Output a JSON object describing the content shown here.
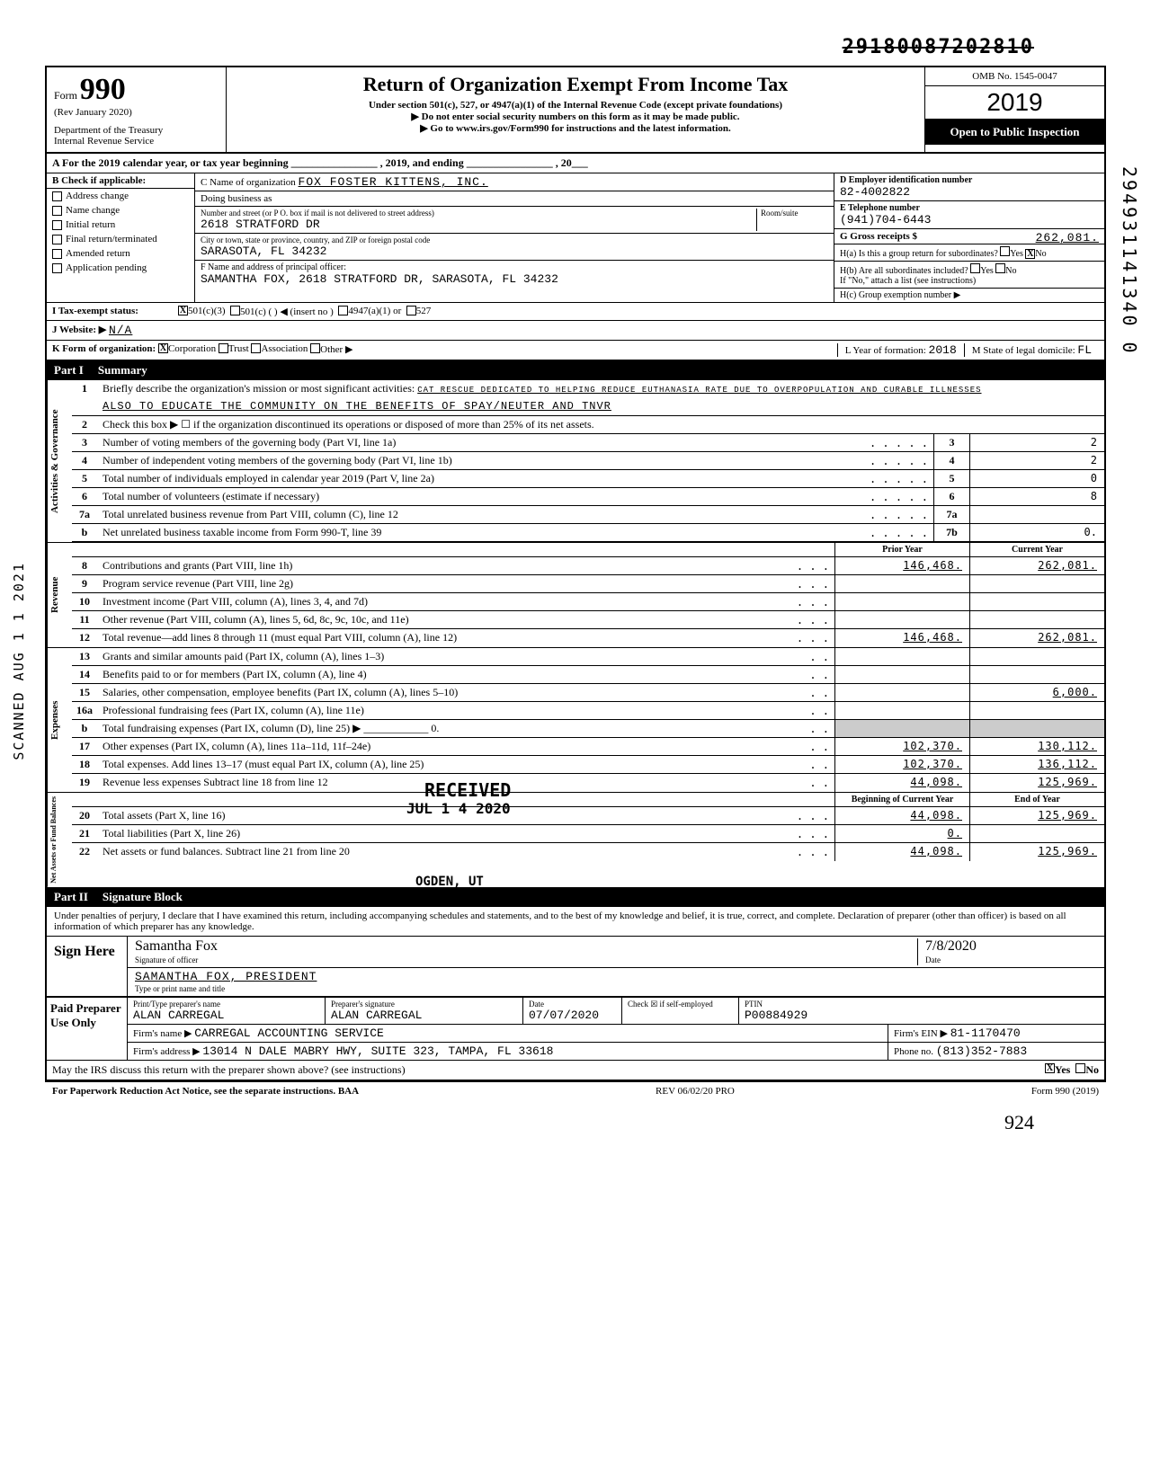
{
  "stamp_top": "29180087202810",
  "side_scanned": "SCANNED AUG 1 1 2021",
  "side_number": "294931141340 0",
  "form": {
    "number_prefix": "Form",
    "number": "990",
    "rev": "(Rev January 2020)",
    "dept": "Department of the Treasury",
    "irs": "Internal Revenue Service",
    "title": "Return of Organization Exempt From Income Tax",
    "subtitle": "Under section 501(c), 527, or 4947(a)(1) of the Internal Revenue Code (except private foundations)",
    "note1": "▶ Do not enter social security numbers on this form as it may be made public.",
    "note2": "▶ Go to www.irs.gov/Form990 for instructions and the latest information.",
    "omb": "OMB No. 1545-0047",
    "year": "2019",
    "open": "Open to Public Inspection"
  },
  "rowA": "A  For the 2019 calendar year, or tax year beginning ________________ , 2019, and ending ________________ , 20___",
  "boxB": {
    "header": "B  Check if applicable:",
    "items": [
      "Address change",
      "Name change",
      "Initial return",
      "Final return/terminated",
      "Amended return",
      "Application pending"
    ]
  },
  "boxC": {
    "label_name": "C Name of organization",
    "name": "FOX FOSTER KITTENS, INC.",
    "dba": "Doing business as",
    "addr_label": "Number and street (or P O. box if mail is not delivered to street address)",
    "room_label": "Room/suite",
    "addr": "2618 STRATFORD DR",
    "city_label": "City or town, state or province, country, and ZIP or foreign postal code",
    "city": "SARASOTA, FL 34232",
    "f_label": "F Name and address of principal officer:",
    "f_val": "SAMANTHA FOX, 2618 STRATFORD DR, SARASOTA, FL 34232"
  },
  "boxD": {
    "label": "D Employer identification number",
    "val": "82-4002822"
  },
  "boxE": {
    "label": "E Telephone number",
    "val": "(941)704-6443"
  },
  "boxG": {
    "label": "G Gross receipts $",
    "val": "262,081."
  },
  "boxH": {
    "a": "H(a) Is this a group return for subordinates?",
    "a_yes": "Yes",
    "a_no": "No",
    "b": "H(b) Are all subordinates included?",
    "b_yes": "Yes",
    "b_no": "No",
    "b_note": "If \"No,\" attach a list (see instructions)",
    "c": "H(c) Group exemption number ▶"
  },
  "rowI": {
    "label": "I   Tax-exempt status:",
    "opts": [
      "501(c)(3)",
      "501(c) (       ) ◀ (insert no )",
      "4947(a)(1) or",
      "527"
    ]
  },
  "rowJ": {
    "label": "J   Website: ▶",
    "val": "N/A"
  },
  "rowK": {
    "label": "K  Form of organization:",
    "opts": [
      "Corporation",
      "Trust",
      "Association",
      "Other ▶"
    ],
    "l_label": "L Year of formation:",
    "l_val": "2018",
    "m_label": "M State of legal domicile:",
    "m_val": "FL"
  },
  "part1": {
    "label": "Part I",
    "title": "Summary"
  },
  "s1": {
    "n": "1",
    "desc": "Briefly describe the organization's mission or most significant activities:",
    "text1": "CAT RESCUE DEDICATED TO HELPING REDUCE EUTHANASIA RATE DUE TO OVERPOPULATION AND CURABLE ILLNESSES",
    "text2": "ALSO TO EDUCATE THE COMMUNITY ON THE BENEFITS OF SPAY/NEUTER AND TNVR"
  },
  "s2": {
    "n": "2",
    "desc": "Check this box ▶ ☐ if the organization discontinued its operations or disposed of more than 25% of its net assets."
  },
  "lines_gov": [
    {
      "n": "3",
      "desc": "Number of voting members of the governing body (Part VI, line 1a)",
      "col": "3",
      "val": "2"
    },
    {
      "n": "4",
      "desc": "Number of independent voting members of the governing body (Part VI, line 1b)",
      "col": "4",
      "val": "2"
    },
    {
      "n": "5",
      "desc": "Total number of individuals employed in calendar year 2019 (Part V, line 2a)",
      "col": "5",
      "val": "0"
    },
    {
      "n": "6",
      "desc": "Total number of volunteers (estimate if necessary)",
      "col": "6",
      "val": "8"
    },
    {
      "n": "7a",
      "desc": "Total unrelated business revenue from Part VIII, column (C), line 12",
      "col": "7a",
      "val": ""
    },
    {
      "n": "b",
      "desc": "Net unrelated business taxable income from Form 990-T, line 39",
      "col": "7b",
      "val": "0."
    }
  ],
  "col_headers": {
    "prior": "Prior Year",
    "current": "Current Year"
  },
  "lines_rev": [
    {
      "n": "8",
      "desc": "Contributions and grants (Part VIII, line 1h)",
      "prior": "146,468.",
      "curr": "262,081."
    },
    {
      "n": "9",
      "desc": "Program service revenue (Part VIII, line 2g)",
      "prior": "",
      "curr": ""
    },
    {
      "n": "10",
      "desc": "Investment income (Part VIII, column (A), lines 3, 4, and 7d)",
      "prior": "",
      "curr": ""
    },
    {
      "n": "11",
      "desc": "Other revenue (Part VIII, column (A), lines 5, 6d, 8c, 9c, 10c, and 11e)",
      "prior": "",
      "curr": ""
    },
    {
      "n": "12",
      "desc": "Total revenue—add lines 8 through 11 (must equal Part VIII, column (A), line 12)",
      "prior": "146,468.",
      "curr": "262,081."
    }
  ],
  "lines_exp": [
    {
      "n": "13",
      "desc": "Grants and similar amounts paid (Part IX, column (A), lines 1–3)",
      "prior": "",
      "curr": ""
    },
    {
      "n": "14",
      "desc": "Benefits paid to or for members (Part IX, column (A), line 4)",
      "prior": "",
      "curr": ""
    },
    {
      "n": "15",
      "desc": "Salaries, other compensation, employee benefits (Part IX, column (A), lines 5–10)",
      "prior": "",
      "curr": "6,000."
    },
    {
      "n": "16a",
      "desc": "Professional fundraising fees (Part IX, column (A), line 11e)",
      "prior": "",
      "curr": ""
    },
    {
      "n": "b",
      "desc": "Total fundraising expenses (Part IX, column (D), line 25) ▶ ____________ 0.",
      "prior": "",
      "curr": "",
      "shaded": true
    },
    {
      "n": "17",
      "desc": "Other expenses (Part IX, column (A), lines 11a–11d, 11f–24e)",
      "prior": "102,370.",
      "curr": "130,112."
    },
    {
      "n": "18",
      "desc": "Total expenses. Add lines 13–17 (must equal Part IX, column (A), line 25)",
      "prior": "102,370.",
      "curr": "136,112."
    },
    {
      "n": "19",
      "desc": "Revenue less expenses Subtract line 18 from line 12",
      "prior": "44,098.",
      "curr": "125,969."
    }
  ],
  "col_headers2": {
    "begin": "Beginning of Current Year",
    "end": "End of Year"
  },
  "lines_net": [
    {
      "n": "20",
      "desc": "Total assets (Part X, line 16)",
      "prior": "44,098.",
      "curr": "125,969."
    },
    {
      "n": "21",
      "desc": "Total liabilities (Part X, line 26)",
      "prior": "0.",
      "curr": ""
    },
    {
      "n": "22",
      "desc": "Net assets or fund balances. Subtract line 21 from line 20",
      "prior": "44,098.",
      "curr": "125,969."
    }
  ],
  "part2": {
    "label": "Part II",
    "title": "Signature Block"
  },
  "sig": {
    "decl": "Under penalties of perjury, I declare that I have examined this return, including accompanying schedules and statements, and to the best of my knowledge and belief, it is true, correct, and complete. Declaration of preparer (other than officer) is based on all information of which preparer has any knowledge.",
    "here": "Sign Here",
    "sig_of": "Signature of officer",
    "date_lbl": "Date",
    "date_val": "7/8/2020",
    "signed_handwrite": "Samantha Fox",
    "name": "SAMANTHA FOX, PRESIDENT",
    "name_lbl": "Type or print name and title"
  },
  "prep": {
    "label": "Paid Preparer Use Only",
    "h1": "Print/Type preparer's name",
    "h2": "Preparer's signature",
    "h3": "Date",
    "h4": "Check ☒ if self-employed",
    "h5": "PTIN",
    "name": "ALAN CARREGAL",
    "sig": "ALAN CARREGAL",
    "date": "07/07/2020",
    "ptin": "P00884929",
    "firm_lbl": "Firm's name ▶",
    "firm": "CARREGAL ACCOUNTING SERVICE",
    "ein_lbl": "Firm's EIN ▶",
    "ein": "81-1170470",
    "addr_lbl": "Firm's address ▶",
    "addr": "13014 N DALE MABRY HWY, SUITE 323, TAMPA, FL 33618",
    "phone_lbl": "Phone no.",
    "phone": "(813)352-7883"
  },
  "discuss": {
    "q": "May the IRS discuss this return with the preparer shown above? (see instructions)",
    "yes": "Yes",
    "no": "No"
  },
  "footer": {
    "left": "For Paperwork Reduction Act Notice, see the separate instructions. BAA",
    "mid": "REV 06/02/20 PRO",
    "right": "Form 990 (2019)"
  },
  "received": {
    "text": "RECEIVED",
    "date": "JUL 1 4 2020",
    "office": "OGDEN, UT"
  },
  "handwrite_bottom": "924",
  "vert_labels": {
    "gov": "Activities & Governance",
    "rev": "Revenue",
    "exp": "Expenses",
    "net": "Net Assets or Fund Balances"
  }
}
